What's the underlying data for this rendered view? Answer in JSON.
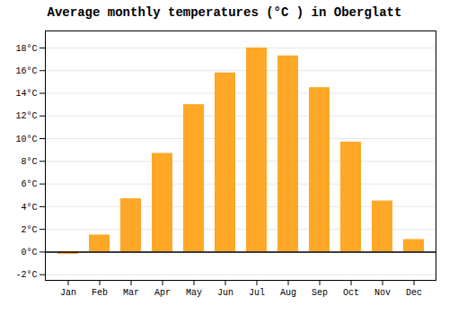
{
  "chart_data": {
    "type": "bar",
    "title": "Average monthly temperatures (°C ) in Oberglatt",
    "categories": [
      "Jan",
      "Feb",
      "Mar",
      "Apr",
      "May",
      "Jun",
      "Jul",
      "Aug",
      "Sep",
      "Oct",
      "Nov",
      "Dec"
    ],
    "values": [
      -0.2,
      1.5,
      4.7,
      8.7,
      13.0,
      15.8,
      18.0,
      17.3,
      14.5,
      9.7,
      4.5,
      1.1
    ],
    "color": "#FFA726",
    "ylim": [
      -2.5,
      19.5
    ],
    "yticks": [
      {
        "value": -2,
        "label": "-2°C"
      },
      {
        "value": 0,
        "label": "0°C"
      },
      {
        "value": 2,
        "label": "2°C"
      },
      {
        "value": 4,
        "label": "4°C"
      },
      {
        "value": 6,
        "label": "6°C"
      },
      {
        "value": 8,
        "label": "8°C"
      },
      {
        "value": 10,
        "label": "10°C"
      },
      {
        "value": 12,
        "label": "12°C"
      },
      {
        "value": 14,
        "label": "14°C"
      },
      {
        "value": 16,
        "label": "16°C"
      },
      {
        "value": 18,
        "label": "18°C"
      }
    ],
    "grid": true
  }
}
